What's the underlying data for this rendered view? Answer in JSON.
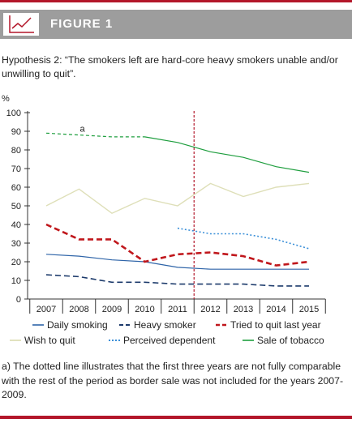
{
  "header": {
    "title": "FIGURE 1",
    "icon": "line-chart-icon"
  },
  "subtitle": "Hypothesis 2: “The smokers left are hard-core heavy smokers unable and/or unwilling to quit”.",
  "footnote": "a) The dotted line illustrates that the first three years are not fully comparable with the rest of the period as border sale was not included for the years 2007-2009.",
  "colors": {
    "accent": "#b3172a",
    "header_bg": "#9d9d9d"
  },
  "chart_data": {
    "type": "line",
    "ylabel": "%",
    "ylim": [
      0,
      100
    ],
    "yticks": [
      0,
      10,
      20,
      30,
      40,
      50,
      60,
      70,
      80,
      90,
      100
    ],
    "x": [
      2007,
      2008,
      2009,
      2010,
      2011,
      2012,
      2013,
      2014,
      2015
    ],
    "annotation": "a",
    "reference_line_x": 2011.5,
    "series": [
      {
        "name": "Daily smoking",
        "color": "#2e64a8",
        "dash": "solid",
        "width": 1.2,
        "values": [
          24,
          23,
          21,
          20,
          17,
          16,
          16,
          16,
          16
        ]
      },
      {
        "name": "Heavy smoker",
        "color": "#1c3a6b",
        "dash": "dashed",
        "width": 1.6,
        "values": [
          13,
          12,
          9,
          9,
          8,
          8,
          8,
          7,
          7
        ]
      },
      {
        "name": "Tried to quit last year",
        "color": "#c0171c",
        "dash": "dashed",
        "width": 2.6,
        "values": [
          40,
          32,
          32,
          20,
          24,
          25,
          23,
          18,
          20
        ]
      },
      {
        "name": "Wish to quit",
        "color": "#dedfb8",
        "dash": "solid",
        "width": 1.4,
        "values": [
          50,
          59,
          46,
          54,
          50,
          62,
          55,
          60,
          62
        ]
      },
      {
        "name": "Perceived dependent",
        "color": "#3a8fd8",
        "dash": "dotted",
        "width": 1.6,
        "values": [
          null,
          null,
          null,
          null,
          38,
          35,
          35,
          32,
          27
        ]
      },
      {
        "name": "Sale of tobacco",
        "color": "#1e9e3e",
        "dash": "solid",
        "width": 1.2,
        "values": [
          89,
          88,
          87,
          87,
          84,
          79,
          76,
          71,
          68
        ],
        "dotted_until_index": 3
      }
    ]
  }
}
